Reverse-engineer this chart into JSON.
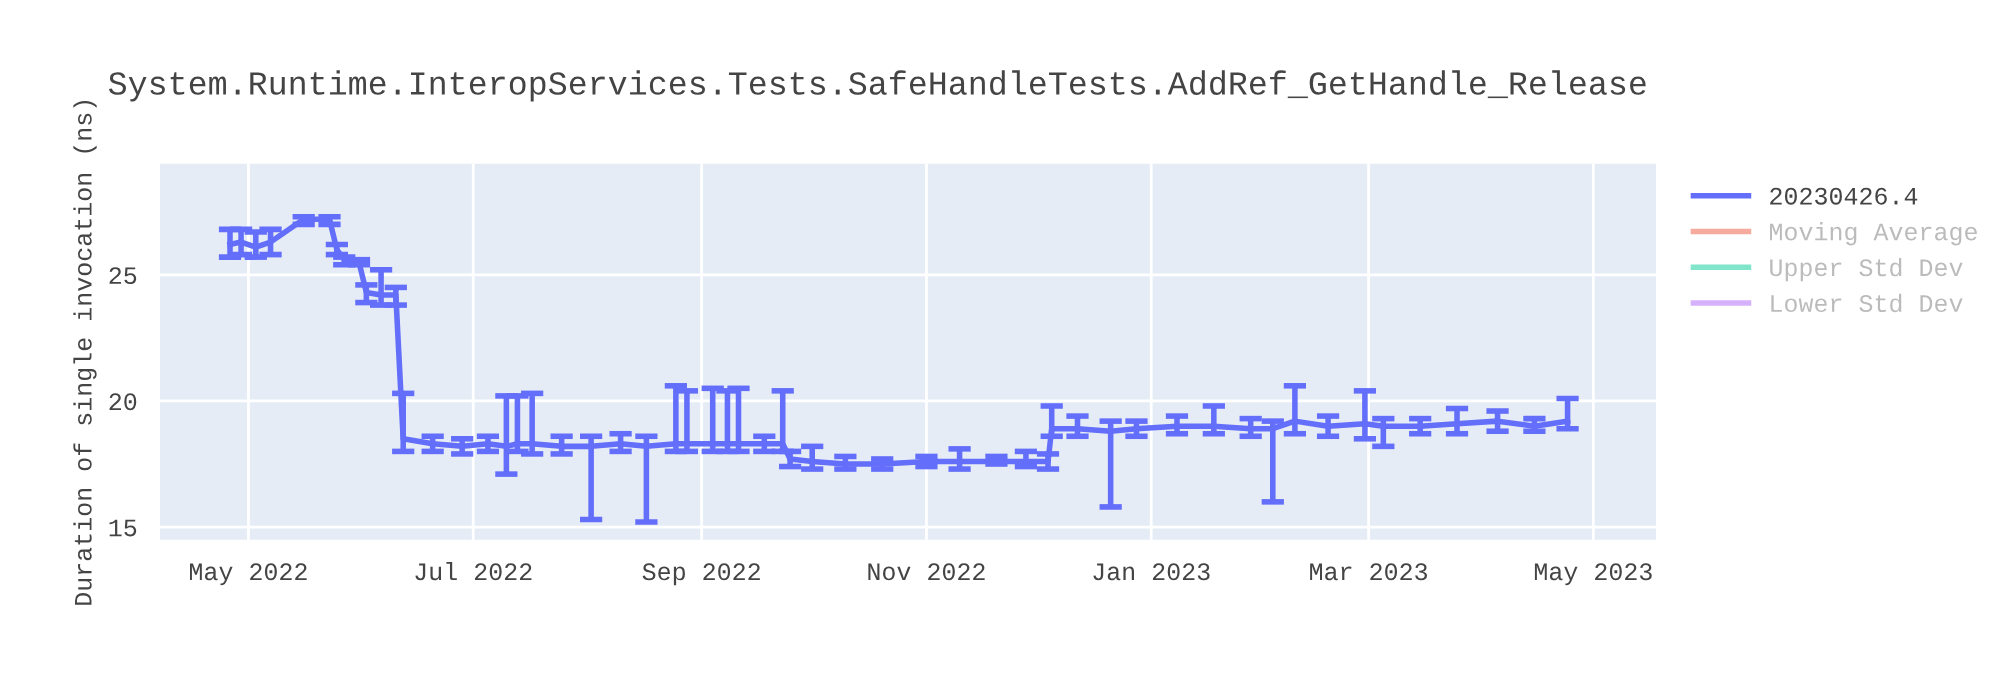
{
  "chart_data": {
    "type": "line",
    "title": "System.Runtime.InteropServices.Tests.SafeHandleTests.AddRef_GetHandle_Release",
    "ylabel": "Duration of single invocation (ns)",
    "x": [
      "2022-04-26",
      "2022-04-29",
      "2022-05-03",
      "2022-05-07",
      "2022-05-16",
      "2022-05-23",
      "2022-05-25",
      "2022-05-27",
      "2022-05-31",
      "2022-06-02",
      "2022-06-06",
      "2022-06-10",
      "2022-06-12",
      "2022-06-20",
      "2022-06-28",
      "2022-07-05",
      "2022-07-10",
      "2022-07-13",
      "2022-07-17",
      "2022-07-25",
      "2022-08-02",
      "2022-08-10",
      "2022-08-17",
      "2022-08-25",
      "2022-08-28",
      "2022-09-04",
      "2022-09-08",
      "2022-09-11",
      "2022-09-18",
      "2022-09-23",
      "2022-09-25",
      "2022-10-01",
      "2022-10-10",
      "2022-10-20",
      "2022-11-01",
      "2022-11-10",
      "2022-11-20",
      "2022-11-28",
      "2022-12-04",
      "2022-12-05",
      "2022-12-12",
      "2022-12-21",
      "2022-12-28",
      "2023-01-08",
      "2023-01-18",
      "2023-01-28",
      "2023-02-03",
      "2023-02-09",
      "2023-02-18",
      "2023-02-28",
      "2023-03-05",
      "2023-03-15",
      "2023-03-25",
      "2023-04-05",
      "2023-04-15",
      "2023-04-24"
    ],
    "series": [
      {
        "name": "20230426.4",
        "color": "#636efa",
        "values": [
          26.2,
          26.3,
          26.1,
          26.3,
          27.2,
          27.2,
          26.0,
          25.6,
          25.5,
          24.3,
          24.2,
          24.2,
          18.5,
          18.3,
          18.2,
          18.3,
          18.2,
          18.3,
          18.3,
          18.2,
          18.2,
          18.3,
          18.2,
          18.3,
          18.3,
          18.3,
          18.3,
          18.3,
          18.3,
          18.3,
          17.7,
          17.6,
          17.5,
          17.5,
          17.6,
          17.6,
          17.6,
          17.6,
          17.6,
          18.9,
          18.9,
          18.8,
          18.9,
          19.0,
          19.0,
          18.9,
          18.9,
          19.2,
          19.0,
          19.1,
          19.0,
          19.0,
          19.1,
          19.2,
          19.0,
          19.2
        ],
        "errors": [
          [
            25.7,
            26.8
          ],
          [
            25.8,
            26.8
          ],
          [
            25.7,
            26.7
          ],
          [
            25.8,
            26.8
          ],
          [
            27.0,
            27.3
          ],
          [
            27.0,
            27.3
          ],
          [
            25.8,
            26.2
          ],
          [
            25.4,
            25.7
          ],
          [
            25.4,
            25.6
          ],
          [
            23.9,
            24.6
          ],
          [
            23.8,
            25.2
          ],
          [
            23.8,
            24.5
          ],
          [
            18.0,
            20.3
          ],
          [
            18.0,
            18.6
          ],
          [
            17.9,
            18.5
          ],
          [
            18.0,
            18.6
          ],
          [
            17.1,
            20.2
          ],
          [
            18.0,
            20.2
          ],
          [
            17.9,
            20.3
          ],
          [
            17.9,
            18.6
          ],
          [
            15.3,
            18.6
          ],
          [
            18.0,
            18.7
          ],
          [
            15.2,
            18.6
          ],
          [
            18.0,
            20.6
          ],
          [
            18.0,
            20.4
          ],
          [
            18.0,
            20.5
          ],
          [
            18.0,
            20.4
          ],
          [
            18.0,
            20.5
          ],
          [
            18.0,
            18.6
          ],
          [
            18.0,
            20.4
          ],
          [
            17.4,
            18.0
          ],
          [
            17.3,
            18.2
          ],
          [
            17.3,
            17.8
          ],
          [
            17.3,
            17.7
          ],
          [
            17.4,
            17.8
          ],
          [
            17.3,
            18.1
          ],
          [
            17.5,
            17.8
          ],
          [
            17.4,
            18.0
          ],
          [
            17.3,
            17.9
          ],
          [
            18.6,
            19.8
          ],
          [
            18.6,
            19.4
          ],
          [
            15.8,
            19.2
          ],
          [
            18.6,
            19.2
          ],
          [
            18.7,
            19.4
          ],
          [
            18.7,
            19.8
          ],
          [
            18.6,
            19.3
          ],
          [
            16.0,
            19.2
          ],
          [
            18.7,
            20.6
          ],
          [
            18.6,
            19.4
          ],
          [
            18.5,
            20.4
          ],
          [
            18.2,
            19.3
          ],
          [
            18.7,
            19.3
          ],
          [
            18.7,
            19.7
          ],
          [
            18.8,
            19.6
          ],
          [
            18.8,
            19.3
          ],
          [
            18.9,
            20.1
          ]
        ]
      },
      {
        "name": "Moving Average",
        "color": "#f5aa9d",
        "values": [
          null,
          null,
          null,
          null,
          null,
          null,
          null,
          null,
          null,
          null,
          null,
          null,
          null,
          null,
          null,
          null,
          null,
          null,
          null,
          null,
          null,
          null,
          null,
          null,
          null,
          null,
          null,
          null,
          null,
          null,
          null,
          null,
          null,
          null,
          null,
          null,
          null,
          null,
          null,
          null,
          null,
          null,
          null,
          null,
          null,
          null,
          null,
          null,
          null,
          null,
          null,
          null,
          null,
          null,
          null,
          null
        ]
      },
      {
        "name": "Upper Std Dev",
        "color": "#80e5ca",
        "values": [
          null,
          null,
          null,
          null,
          null,
          null,
          null,
          null,
          null,
          null,
          null,
          null,
          null,
          null,
          null,
          null,
          null,
          null,
          null,
          null,
          null,
          null,
          null,
          null,
          null,
          null,
          null,
          null,
          null,
          null,
          null,
          null,
          null,
          null,
          null,
          null,
          null,
          null,
          null,
          null,
          null,
          null,
          null,
          null,
          null,
          null,
          null,
          null,
          null,
          null,
          null,
          null,
          null,
          null,
          null,
          null
        ]
      },
      {
        "name": "Lower Std Dev",
        "color": "#d5b1fc",
        "values": [
          null,
          null,
          null,
          null,
          null,
          null,
          null,
          null,
          null,
          null,
          null,
          null,
          null,
          null,
          null,
          null,
          null,
          null,
          null,
          null,
          null,
          null,
          null,
          null,
          null,
          null,
          null,
          null,
          null,
          null,
          null,
          null,
          null,
          null,
          null,
          null,
          null,
          null,
          null,
          null,
          null,
          null,
          null,
          null,
          null,
          null,
          null,
          null,
          null,
          null,
          null,
          null,
          null,
          null,
          null,
          null
        ]
      }
    ],
    "xlim": [
      "2022-04-07",
      "2023-05-18"
    ],
    "xticks": [
      {
        "value": "2022-05-01",
        "label": "May 2022"
      },
      {
        "value": "2022-07-01",
        "label": "Jul 2022"
      },
      {
        "value": "2022-09-01",
        "label": "Sep 2022"
      },
      {
        "value": "2022-11-01",
        "label": "Nov 2022"
      },
      {
        "value": "2023-01-01",
        "label": "Jan 2023"
      },
      {
        "value": "2023-03-01",
        "label": "Mar 2023"
      },
      {
        "value": "2023-05-01",
        "label": "May 2023"
      }
    ],
    "ylim": [
      14.5,
      29.4
    ],
    "yticks": [
      15,
      20,
      25
    ],
    "grid": true,
    "legend": "top right"
  }
}
